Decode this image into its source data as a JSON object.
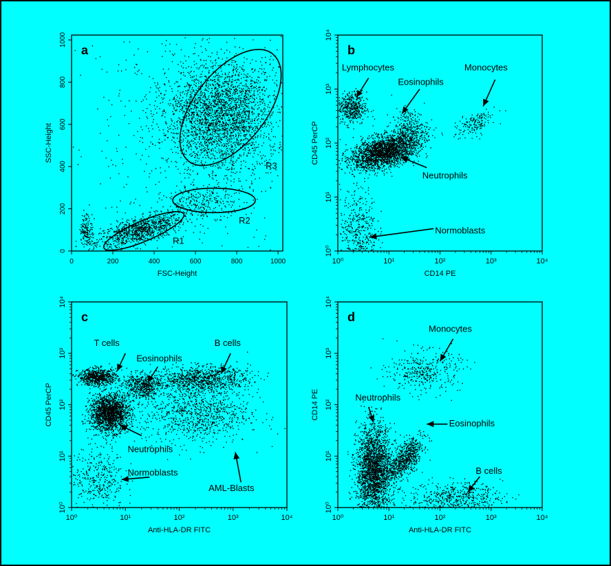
{
  "colors": {
    "background": "#00ffff",
    "ink": "#000000",
    "border": "#000000"
  },
  "chart_data": [
    {
      "panel": "a",
      "type": "scatter",
      "xlabel": "FSC-Height",
      "ylabel": "SSC-Height",
      "xlim": [
        0,
        1023
      ],
      "ylim": [
        0,
        1023
      ],
      "xscale": "linear",
      "yscale": "linear",
      "x_ticks": [
        "0",
        "200",
        "400",
        "600",
        "800",
        "1000"
      ],
      "y_ticks": [
        "0",
        "200",
        "400",
        "600",
        "800",
        "1000"
      ],
      "grid": false,
      "populations": [
        {
          "name": "",
          "cx": 330,
          "cy": 100,
          "sx": 110,
          "sy": 30,
          "rot": 15,
          "n": 900
        },
        {
          "name": "",
          "cx": 720,
          "cy": 640,
          "sx": 130,
          "sy": 130,
          "rot": 55,
          "n": 2600
        },
        {
          "name": "",
          "cx": 640,
          "cy": 230,
          "sx": 100,
          "sy": 35,
          "rot": 0,
          "n": 250
        },
        {
          "name": "",
          "cx": 70,
          "cy": 100,
          "sx": 15,
          "sy": 40,
          "rot": 0,
          "n": 150
        },
        {
          "name": "",
          "cx": 550,
          "cy": 550,
          "sx": 300,
          "sy": 300,
          "rot": 0,
          "n": 500
        }
      ],
      "gates": [
        {
          "label": "R1",
          "cx": 350,
          "cy": 95,
          "rx": 210,
          "ry": 48,
          "rot": 23
        },
        {
          "label": "R2",
          "cx": 690,
          "cy": 240,
          "rx": 200,
          "ry": 58,
          "rot": 0
        },
        {
          "label": "R3",
          "cx": 770,
          "cy": 680,
          "rx": 330,
          "ry": 170,
          "rot": 52
        }
      ],
      "annotations": [
        {
          "text": "R1",
          "x": 490,
          "y": 35
        },
        {
          "text": "R2",
          "x": 810,
          "y": 130
        },
        {
          "text": "R3",
          "x": 940,
          "y": 390
        }
      ]
    },
    {
      "panel": "b",
      "type": "scatter",
      "xlabel": "CD14 PE",
      "ylabel": "CD45 PerCP",
      "xlim": [
        1,
        10000
      ],
      "ylim": [
        1,
        10000
      ],
      "xscale": "log",
      "yscale": "log",
      "x_ticks": [
        "10⁰",
        "10¹",
        "10²",
        "10³",
        "10⁴"
      ],
      "y_ticks": [
        "10⁰",
        "10¹",
        "10²",
        "10³",
        "10⁴"
      ],
      "grid": false,
      "populations": [
        {
          "name": "Neutrophils",
          "cx": 8,
          "cy": 70,
          "sx": 0.33,
          "sy": 0.14,
          "rot": 15,
          "n": 2200
        },
        {
          "name": "Lymphocytes",
          "cx": 1.8,
          "cy": 450,
          "sx": 0.15,
          "sy": 0.15,
          "rot": 0,
          "n": 450
        },
        {
          "name": "Eosinophils",
          "cx": 25,
          "cy": 180,
          "sx": 0.18,
          "sy": 0.18,
          "rot": 0,
          "n": 300
        },
        {
          "name": "Monocytes",
          "cx": 450,
          "cy": 230,
          "sx": 0.2,
          "sy": 0.1,
          "rot": 30,
          "n": 150
        },
        {
          "name": "Normoblasts",
          "cx": 2.5,
          "cy": 2.5,
          "sx": 0.18,
          "sy": 0.4,
          "rot": 0,
          "n": 400
        }
      ],
      "annotations": [
        {
          "text": "Lymphocytes",
          "x": 1.2,
          "y": 2200,
          "ax": 4,
          "ay": 1600,
          "hx": 2.3,
          "hy": 700
        },
        {
          "text": "Eosinophils",
          "x": 15,
          "y": 1200,
          "ax": 40,
          "ay": 1000,
          "hx": 18,
          "hy": 350
        },
        {
          "text": "Monocytes",
          "x": 300,
          "y": 2200,
          "ax": 1200,
          "ay": 1500,
          "hx": 700,
          "hy": 480
        },
        {
          "text": "Neutrophils",
          "x": 45,
          "y": 22,
          "ax": 55,
          "ay": 35,
          "hx": 17,
          "hy": 55
        },
        {
          "text": "Normoblasts",
          "x": 80,
          "y": 2.1,
          "ax": 75,
          "ay": 2.6,
          "hx": 4.2,
          "hy": 1.8
        }
      ]
    },
    {
      "panel": "c",
      "type": "scatter",
      "xlabel": "Anti-HLA-DR FITC",
      "ylabel": "CD45 PerCP",
      "xlim": [
        1,
        10000
      ],
      "ylim": [
        1,
        10000
      ],
      "xscale": "log",
      "yscale": "log",
      "x_ticks": [
        "10⁰",
        "10¹",
        "10²",
        "10³",
        "10⁴"
      ],
      "y_ticks": [
        "10⁰",
        "10¹",
        "10²",
        "10³",
        "10⁴"
      ],
      "grid": false,
      "populations": [
        {
          "name": "Neutrophils",
          "cx": 5,
          "cy": 70,
          "sx": 0.18,
          "sy": 0.18,
          "rot": 0,
          "n": 1800
        },
        {
          "name": "T cells",
          "cx": 3,
          "cy": 350,
          "sx": 0.18,
          "sy": 0.08,
          "rot": 0,
          "n": 700
        },
        {
          "name": "Eosinophils",
          "cx": 20,
          "cy": 230,
          "sx": 0.18,
          "sy": 0.12,
          "rot": 0,
          "n": 500
        },
        {
          "name": "B  cells",
          "cx": 250,
          "cy": 330,
          "sx": 0.45,
          "sy": 0.12,
          "rot": 0,
          "n": 900
        },
        {
          "name": "AML-Blasts",
          "cx": 200,
          "cy": 70,
          "sx": 0.5,
          "sy": 0.3,
          "rot": 0,
          "n": 900
        },
        {
          "name": "Normoblasts",
          "cx": 3,
          "cy": 4,
          "sx": 0.25,
          "sy": 0.3,
          "rot": 0,
          "n": 350
        }
      ],
      "annotations": [
        {
          "text": "T cells",
          "x": 2.6,
          "y": 1400,
          "ax": 10,
          "ay": 1000,
          "hx": 7,
          "hy": 450
        },
        {
          "text": "Eosinophils",
          "x": 16,
          "y": 700,
          "ax": 40,
          "ay": 550,
          "hx": 26,
          "hy": 270
        },
        {
          "text": "B  cells",
          "x": 450,
          "y": 1400,
          "ax": 900,
          "ay": 1000,
          "hx": 600,
          "hy": 400
        },
        {
          "text": "Neutrophils",
          "x": 11,
          "y": 12,
          "ax": 20,
          "ay": 25,
          "hx": 8,
          "hy": 40
        },
        {
          "text": "Normoblasts",
          "x": 11,
          "y": 4.2,
          "ax": 28,
          "ay": 3.9,
          "hx": 8.5,
          "hy": 3.5
        },
        {
          "text": "AML-Blasts",
          "x": 350,
          "y": 2.1,
          "ax": 1400,
          "ay": 3.1,
          "hx": 1100,
          "hy": 12
        }
      ]
    },
    {
      "panel": "d",
      "type": "scatter",
      "xlabel": "Anti-HLA-DR FITC",
      "ylabel": "CD14 PE",
      "xlim": [
        1,
        10000
      ],
      "ylim": [
        1,
        10000
      ],
      "xscale": "log",
      "yscale": "log",
      "x_ticks": [
        "10⁰",
        "10¹",
        "10²",
        "10³",
        "10⁴"
      ],
      "y_ticks": [
        "10⁰",
        "10¹",
        "10²",
        "10³",
        "10⁴"
      ],
      "grid": false,
      "populations": [
        {
          "name": "Neutrophils",
          "cx": 5,
          "cy": 5,
          "sx": 0.17,
          "sy": 0.45,
          "rot": 0,
          "n": 2300
        },
        {
          "name": "Eosinophils",
          "cx": 20,
          "cy": 9,
          "sx": 0.12,
          "sy": 0.25,
          "rot": -40,
          "n": 700
        },
        {
          "name": "Monocytes",
          "cx": 50,
          "cy": 450,
          "sx": 0.35,
          "sy": 0.2,
          "rot": 0,
          "n": 350
        },
        {
          "name": "B cells",
          "cx": 200,
          "cy": 1.6,
          "sx": 0.45,
          "sy": 0.15,
          "rot": 0,
          "n": 500
        }
      ],
      "annotations": [
        {
          "text": "Monocytes",
          "x": 60,
          "y": 2600,
          "ax": 180,
          "ay": 1900,
          "hx": 100,
          "hy": 700
        },
        {
          "text": "Neutrophils",
          "x": 2.2,
          "y": 120,
          "ax": 4,
          "ay": 90,
          "hx": 5,
          "hy": 45
        },
        {
          "text": "Eosinophils",
          "x": 150,
          "y": 38,
          "ax": 140,
          "ay": 42,
          "hx": 55,
          "hy": 42
        },
        {
          "text": "B cells",
          "x": 500,
          "y": 4.5,
          "ax": 600,
          "ay": 4,
          "hx": 350,
          "hy": 2
        }
      ]
    }
  ]
}
